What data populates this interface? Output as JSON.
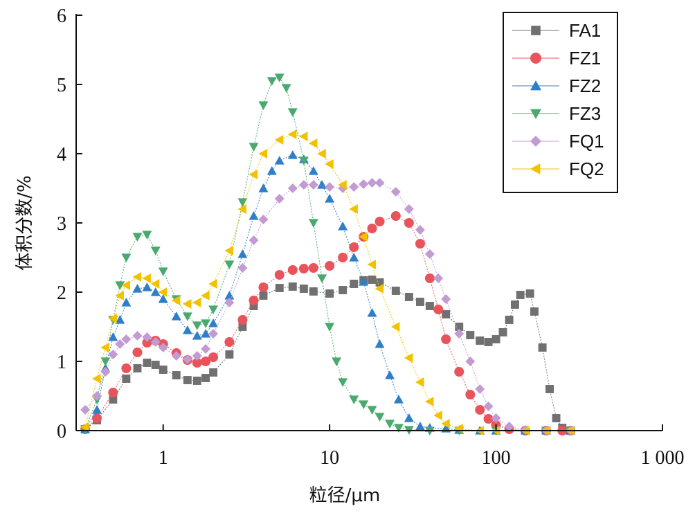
{
  "chart_data": {
    "type": "line",
    "x_scale": "log",
    "xlabel": "粒径/μm",
    "ylabel": "体积分数/%",
    "xlim": [
      0.3,
      1000
    ],
    "ylim": [
      0,
      6
    ],
    "x_ticks": [
      {
        "value": 1,
        "label": "1"
      },
      {
        "value": 10,
        "label": "10"
      },
      {
        "value": 100,
        "label": "100"
      },
      {
        "value": 1000,
        "label": "1 000"
      }
    ],
    "y_ticks": [
      {
        "value": 0,
        "label": "0"
      },
      {
        "value": 1,
        "label": "1"
      },
      {
        "value": 2,
        "label": "2"
      },
      {
        "value": 3,
        "label": "3"
      },
      {
        "value": 4,
        "label": "4"
      },
      {
        "value": 5,
        "label": "5"
      },
      {
        "value": 6,
        "label": "6"
      }
    ],
    "grid": false,
    "legend_position": "top-right",
    "series": [
      {
        "name": "FA1",
        "color": "#707070",
        "marker": "square",
        "points": [
          [
            0.34,
            0.02
          ],
          [
            0.4,
            0.15
          ],
          [
            0.5,
            0.45
          ],
          [
            0.6,
            0.75
          ],
          [
            0.7,
            0.9
          ],
          [
            0.8,
            0.98
          ],
          [
            0.9,
            0.95
          ],
          [
            1.0,
            0.88
          ],
          [
            1.2,
            0.8
          ],
          [
            1.4,
            0.73
          ],
          [
            1.6,
            0.72
          ],
          [
            1.8,
            0.76
          ],
          [
            2.0,
            0.84
          ],
          [
            2.5,
            1.1
          ],
          [
            3.0,
            1.5
          ],
          [
            3.5,
            1.8
          ],
          [
            4.0,
            1.95
          ],
          [
            5.0,
            2.06
          ],
          [
            6.0,
            2.08
          ],
          [
            7.0,
            2.05
          ],
          [
            8.0,
            2.01
          ],
          [
            10.0,
            1.98
          ],
          [
            12.0,
            2.03
          ],
          [
            14.0,
            2.12
          ],
          [
            16.0,
            2.17
          ],
          [
            18.0,
            2.18
          ],
          [
            20.0,
            2.14
          ],
          [
            25.0,
            2.02
          ],
          [
            30.0,
            1.93
          ],
          [
            35.0,
            1.86
          ],
          [
            40.0,
            1.8
          ],
          [
            50.0,
            1.68
          ],
          [
            60.0,
            1.5
          ],
          [
            70.0,
            1.38
          ],
          [
            80.0,
            1.3
          ],
          [
            90.0,
            1.28
          ],
          [
            100.0,
            1.32
          ],
          [
            110.0,
            1.42
          ],
          [
            120.0,
            1.6
          ],
          [
            130.0,
            1.82
          ],
          [
            140.0,
            1.96
          ],
          [
            160.0,
            1.98
          ],
          [
            170.0,
            1.72
          ],
          [
            190.0,
            1.2
          ],
          [
            210.0,
            0.6
          ],
          [
            230.0,
            0.18
          ],
          [
            250.0,
            0.04
          ],
          [
            280.0,
            0.0
          ]
        ]
      },
      {
        "name": "FZ1",
        "color": "#e8545c",
        "marker": "circle",
        "points": [
          [
            0.34,
            0.02
          ],
          [
            0.4,
            0.18
          ],
          [
            0.5,
            0.55
          ],
          [
            0.6,
            0.9
          ],
          [
            0.7,
            1.13
          ],
          [
            0.8,
            1.27
          ],
          [
            0.9,
            1.3
          ],
          [
            1.0,
            1.25
          ],
          [
            1.2,
            1.12
          ],
          [
            1.4,
            1.02
          ],
          [
            1.6,
            0.98
          ],
          [
            1.8,
            1.0
          ],
          [
            2.0,
            1.06
          ],
          [
            2.5,
            1.28
          ],
          [
            3.0,
            1.6
          ],
          [
            3.5,
            1.88
          ],
          [
            4.0,
            2.07
          ],
          [
            5.0,
            2.25
          ],
          [
            6.0,
            2.32
          ],
          [
            7.0,
            2.34
          ],
          [
            8.0,
            2.35
          ],
          [
            10.0,
            2.38
          ],
          [
            12.0,
            2.5
          ],
          [
            14.0,
            2.65
          ],
          [
            16.0,
            2.8
          ],
          [
            18.0,
            2.92
          ],
          [
            20.0,
            3.02
          ],
          [
            25.0,
            3.1
          ],
          [
            30.0,
            3.0
          ],
          [
            35.0,
            2.7
          ],
          [
            40.0,
            2.2
          ],
          [
            45.0,
            1.75
          ],
          [
            50.0,
            1.32
          ],
          [
            60.0,
            0.85
          ],
          [
            70.0,
            0.52
          ],
          [
            80.0,
            0.3
          ],
          [
            90.0,
            0.17
          ],
          [
            100.0,
            0.08
          ],
          [
            120.0,
            0.02
          ],
          [
            150.0,
            0.0
          ],
          [
            200.0,
            0.0
          ],
          [
            250.0,
            0.0
          ],
          [
            280.0,
            0.0
          ]
        ]
      },
      {
        "name": "FZ2",
        "color": "#2f7fc8",
        "marker": "triangle-up",
        "points": [
          [
            0.34,
            0.02
          ],
          [
            0.4,
            0.3
          ],
          [
            0.45,
            0.9
          ],
          [
            0.5,
            1.35
          ],
          [
            0.55,
            1.6
          ],
          [
            0.6,
            1.85
          ],
          [
            0.7,
            2.05
          ],
          [
            0.8,
            2.07
          ],
          [
            0.9,
            2.0
          ],
          [
            1.0,
            1.9
          ],
          [
            1.2,
            1.65
          ],
          [
            1.4,
            1.45
          ],
          [
            1.6,
            1.37
          ],
          [
            1.8,
            1.4
          ],
          [
            2.0,
            1.55
          ],
          [
            2.5,
            1.95
          ],
          [
            3.0,
            2.55
          ],
          [
            3.5,
            3.1
          ],
          [
            4.0,
            3.5
          ],
          [
            4.5,
            3.75
          ],
          [
            5.0,
            3.9
          ],
          [
            6.0,
            3.98
          ],
          [
            7.0,
            3.92
          ],
          [
            8.0,
            3.75
          ],
          [
            9.0,
            3.55
          ],
          [
            10.0,
            3.35
          ],
          [
            12.0,
            2.95
          ],
          [
            14.0,
            2.5
          ],
          [
            16.0,
            2.15
          ],
          [
            18.0,
            1.7
          ],
          [
            20.0,
            1.25
          ],
          [
            23.0,
            0.8
          ],
          [
            26.0,
            0.45
          ],
          [
            30.0,
            0.18
          ],
          [
            35.0,
            0.06
          ],
          [
            40.0,
            0.04
          ],
          [
            50.0,
            0.03
          ],
          [
            60.0,
            0.01
          ],
          [
            80.0,
            0.0
          ],
          [
            100.0,
            0.0
          ],
          [
            150.0,
            0.0
          ],
          [
            200.0,
            0.0
          ],
          [
            280.0,
            0.0
          ]
        ]
      },
      {
        "name": "FZ3",
        "color": "#4aaa6e",
        "marker": "triangle-down",
        "points": [
          [
            0.34,
            0.02
          ],
          [
            0.4,
            0.45
          ],
          [
            0.45,
            1.0
          ],
          [
            0.5,
            1.6
          ],
          [
            0.55,
            2.1
          ],
          [
            0.6,
            2.5
          ],
          [
            0.7,
            2.8
          ],
          [
            0.8,
            2.83
          ],
          [
            0.9,
            2.6
          ],
          [
            1.0,
            2.3
          ],
          [
            1.2,
            1.9
          ],
          [
            1.4,
            1.65
          ],
          [
            1.6,
            1.52
          ],
          [
            1.8,
            1.55
          ],
          [
            2.0,
            1.75
          ],
          [
            2.5,
            2.4
          ],
          [
            3.0,
            3.3
          ],
          [
            3.5,
            4.1
          ],
          [
            4.0,
            4.7
          ],
          [
            4.5,
            5.05
          ],
          [
            5.0,
            5.1
          ],
          [
            5.5,
            4.95
          ],
          [
            6.0,
            4.6
          ],
          [
            7.0,
            3.9
          ],
          [
            8.0,
            3.0
          ],
          [
            9.0,
            2.2
          ],
          [
            10.0,
            1.5
          ],
          [
            11.0,
            1.0
          ],
          [
            12.0,
            0.7
          ],
          [
            14.0,
            0.45
          ],
          [
            16.0,
            0.38
          ],
          [
            18.0,
            0.3
          ],
          [
            20.0,
            0.2
          ],
          [
            23.0,
            0.1
          ],
          [
            26.0,
            0.04
          ],
          [
            30.0,
            0.01
          ],
          [
            40.0,
            0.0
          ],
          [
            60.0,
            0.0
          ],
          [
            100.0,
            0.0
          ],
          [
            200.0,
            0.0
          ],
          [
            280.0,
            0.0
          ]
        ]
      },
      {
        "name": "FQ1",
        "color": "#c39bd3",
        "marker": "diamond",
        "points": [
          [
            0.34,
            0.3
          ],
          [
            0.4,
            0.5
          ],
          [
            0.45,
            0.85
          ],
          [
            0.5,
            1.1
          ],
          [
            0.55,
            1.25
          ],
          [
            0.6,
            1.32
          ],
          [
            0.7,
            1.37
          ],
          [
            0.8,
            1.35
          ],
          [
            0.9,
            1.28
          ],
          [
            1.0,
            1.2
          ],
          [
            1.2,
            1.08
          ],
          [
            1.4,
            1.03
          ],
          [
            1.6,
            1.08
          ],
          [
            1.8,
            1.18
          ],
          [
            2.0,
            1.4
          ],
          [
            2.5,
            1.85
          ],
          [
            3.0,
            2.35
          ],
          [
            3.5,
            2.75
          ],
          [
            4.0,
            3.05
          ],
          [
            5.0,
            3.35
          ],
          [
            6.0,
            3.5
          ],
          [
            7.0,
            3.55
          ],
          [
            8.0,
            3.55
          ],
          [
            10.0,
            3.52
          ],
          [
            12.0,
            3.5
          ],
          [
            14.0,
            3.52
          ],
          [
            16.0,
            3.56
          ],
          [
            18.0,
            3.58
          ],
          [
            20.0,
            3.58
          ],
          [
            25.0,
            3.45
          ],
          [
            30.0,
            3.2
          ],
          [
            35.0,
            2.9
          ],
          [
            40.0,
            2.55
          ],
          [
            45.0,
            2.2
          ],
          [
            50.0,
            1.9
          ],
          [
            60.0,
            1.4
          ],
          [
            70.0,
            1.0
          ],
          [
            80.0,
            0.6
          ],
          [
            90.0,
            0.35
          ],
          [
            100.0,
            0.18
          ],
          [
            120.0,
            0.06
          ],
          [
            150.0,
            0.01
          ],
          [
            200.0,
            0.0
          ],
          [
            280.0,
            0.0
          ]
        ]
      },
      {
        "name": "FQ2",
        "color": "#f2c200",
        "marker": "triangle-left",
        "points": [
          [
            0.34,
            0.05
          ],
          [
            0.4,
            0.75
          ],
          [
            0.45,
            1.2
          ],
          [
            0.5,
            1.62
          ],
          [
            0.55,
            1.95
          ],
          [
            0.6,
            2.1
          ],
          [
            0.7,
            2.22
          ],
          [
            0.8,
            2.2
          ],
          [
            0.9,
            2.12
          ],
          [
            1.0,
            2.0
          ],
          [
            1.2,
            1.88
          ],
          [
            1.4,
            1.83
          ],
          [
            1.6,
            1.85
          ],
          [
            1.8,
            1.95
          ],
          [
            2.0,
            2.12
          ],
          [
            2.5,
            2.6
          ],
          [
            3.0,
            3.2
          ],
          [
            3.5,
            3.7
          ],
          [
            4.0,
            4.0
          ],
          [
            5.0,
            4.2
          ],
          [
            6.0,
            4.28
          ],
          [
            7.0,
            4.25
          ],
          [
            8.0,
            4.15
          ],
          [
            9.0,
            4.0
          ],
          [
            10.0,
            3.85
          ],
          [
            12.0,
            3.55
          ],
          [
            14.0,
            3.2
          ],
          [
            16.0,
            2.8
          ],
          [
            18.0,
            2.4
          ],
          [
            20.0,
            2.05
          ],
          [
            25.0,
            1.5
          ],
          [
            30.0,
            1.05
          ],
          [
            35.0,
            0.7
          ],
          [
            40.0,
            0.42
          ],
          [
            45.0,
            0.22
          ],
          [
            50.0,
            0.1
          ],
          [
            60.0,
            0.03
          ],
          [
            80.0,
            0.0
          ],
          [
            100.0,
            0.0
          ],
          [
            150.0,
            0.0
          ],
          [
            200.0,
            0.0
          ],
          [
            280.0,
            0.0
          ]
        ]
      }
    ]
  }
}
